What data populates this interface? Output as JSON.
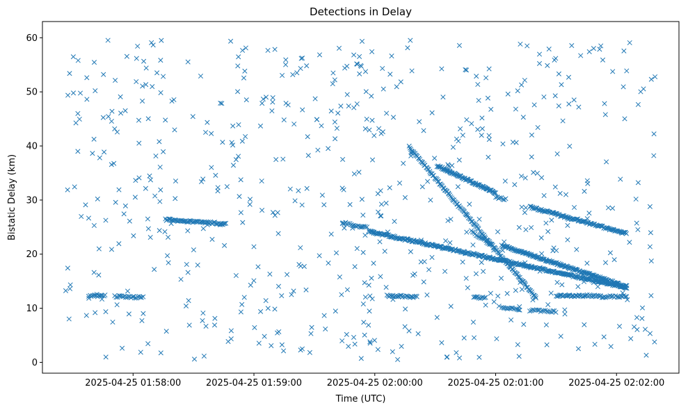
{
  "chart_data": {
    "type": "scatter",
    "title": "Detections in Delay",
    "xlabel": "Time (UTC)",
    "ylabel": "Bistatic Delay (km)",
    "x_axis_type": "time",
    "xlim": [
      "2025-04-25 01:57:15",
      "2025-04-25 02:02:31"
    ],
    "ylim": [
      -2,
      63
    ],
    "xticks": [
      "2025-04-25 01:58:00",
      "2025-04-25 01:59:00",
      "2025-04-25 02:00:00",
      "2025-04-25 02:01:00",
      "2025-04-25 02:02:00"
    ],
    "xtick_labels": [
      "2025-04-25 01:58:00",
      "2025-04-25 01:59:00",
      "2025-04-25 02:00:00",
      "2025-04-25 02:01:00",
      "2025-04-25 02:02:00"
    ],
    "yticks": [
      0,
      10,
      20,
      30,
      40,
      50,
      60
    ],
    "marker": "x",
    "color": "#1f77b4",
    "grid": false,
    "legend": "none",
    "seed": 20250425,
    "noise": {
      "count": 640,
      "t_start": "2025-04-25 01:57:26",
      "t_end": "2025-04-25 02:02:20",
      "y_min": 0.5,
      "y_max": 60
    },
    "tracks": [
      {
        "t_start": "2025-04-25 01:57:38",
        "t_end": "2025-04-25 01:57:46",
        "y_start": 12.3,
        "y_end": 12.3,
        "count": 14
      },
      {
        "t_start": "2025-04-25 01:57:51",
        "t_end": "2025-04-25 01:58:05",
        "y_start": 12.2,
        "y_end": 12.0,
        "count": 22
      },
      {
        "t_start": "2025-04-25 01:58:16",
        "t_end": "2025-04-25 01:58:46",
        "y_start": 26.4,
        "y_end": 25.6,
        "count": 60
      },
      {
        "t_start": "2025-04-25 01:59:44",
        "t_end": "2025-04-25 01:59:56",
        "y_start": 25.8,
        "y_end": 24.9,
        "count": 18
      },
      {
        "t_start": "2025-04-25 01:59:57",
        "t_end": "2025-04-25 02:02:05",
        "y_start": 24.2,
        "y_end": 13.8,
        "count": 330
      },
      {
        "t_start": "2025-04-25 02:00:06",
        "t_end": "2025-04-25 02:00:21",
        "y_start": 12.3,
        "y_end": 12.1,
        "count": 26
      },
      {
        "t_start": "2025-04-25 02:00:17",
        "t_end": "2025-04-25 02:01:20",
        "y_start": 39.8,
        "y_end": 12.0,
        "count": 150
      },
      {
        "t_start": "2025-04-25 02:00:31",
        "t_end": "2025-04-25 02:01:00",
        "y_start": 36.3,
        "y_end": 31.3,
        "count": 85
      },
      {
        "t_start": "2025-04-25 02:01:00",
        "t_end": "2025-04-25 02:01:05",
        "y_start": 30.5,
        "y_end": 30.1,
        "count": 8
      },
      {
        "t_start": "2025-04-25 02:00:48",
        "t_end": "2025-04-25 02:00:58",
        "y_start": 24.2,
        "y_end": 21.7,
        "count": 18
      },
      {
        "t_start": "2025-04-25 02:01:03",
        "t_end": "2025-04-25 02:02:05",
        "y_start": 21.6,
        "y_end": 14.0,
        "count": 170
      },
      {
        "t_start": "2025-04-25 02:01:03",
        "t_end": "2025-04-25 02:01:12",
        "y_start": 10.1,
        "y_end": 9.8,
        "count": 14
      },
      {
        "t_start": "2025-04-25 02:01:17",
        "t_end": "2025-04-25 02:01:30",
        "y_start": 9.6,
        "y_end": 9.4,
        "count": 18
      },
      {
        "t_start": "2025-04-25 02:00:49",
        "t_end": "2025-04-25 02:00:55",
        "y_start": 12.0,
        "y_end": 12.0,
        "count": 10
      },
      {
        "t_start": "2025-04-25 02:01:30",
        "t_end": "2025-04-25 02:01:52",
        "y_start": 12.3,
        "y_end": 12.3,
        "count": 42
      },
      {
        "t_start": "2025-04-25 02:01:52",
        "t_end": "2025-04-25 02:02:05",
        "y_start": 12.1,
        "y_end": 12.2,
        "count": 20
      },
      {
        "t_start": "2025-04-25 02:01:17",
        "t_end": "2025-04-25 02:02:05",
        "y_start": 28.7,
        "y_end": 23.8,
        "count": 110
      }
    ]
  }
}
